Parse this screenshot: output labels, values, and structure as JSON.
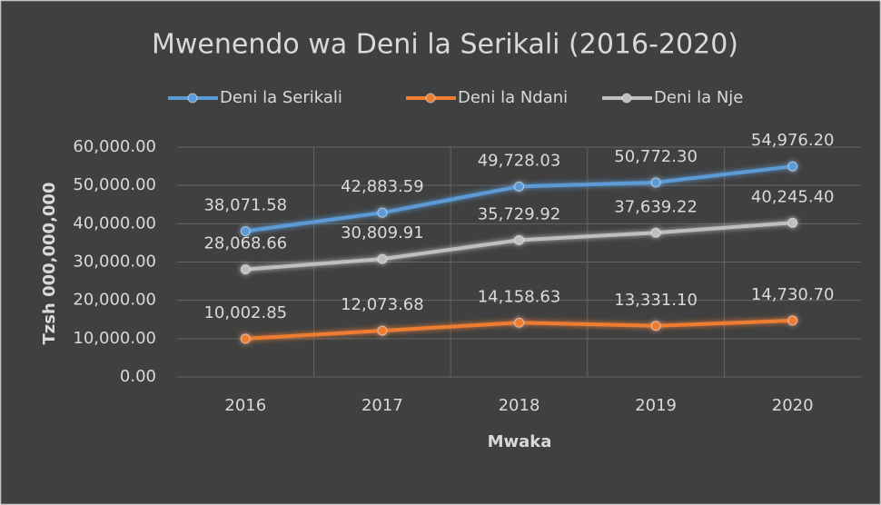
{
  "chart_data": {
    "type": "line",
    "title": "Mwenendo wa Deni la Serikali (2016-2020)",
    "x_label": "Mwaka",
    "y_label": "Tzsh 000,000,000",
    "categories": [
      "2016",
      "2017",
      "2018",
      "2019",
      "2020"
    ],
    "series": [
      {
        "name": "Deni la Serikali",
        "color": "#5b9bd5",
        "values": [
          38071.58,
          42883.59,
          49728.03,
          50772.3,
          54976.2
        ],
        "value_labels": [
          "38,071.58",
          "42,883.59",
          "49,728.03",
          "50,772.30",
          "54,976.20"
        ]
      },
      {
        "name": "Deni la Ndani",
        "color": "#ed7d31",
        "values": [
          10002.85,
          12073.68,
          14158.63,
          13331.1,
          14730.7
        ],
        "value_labels": [
          "10,002.85",
          "12,073.68",
          "14,158.63",
          "13,331.10",
          "14,730.70"
        ]
      },
      {
        "name": "Deni la Nje",
        "color": "#bfbfbf",
        "values": [
          28068.66,
          30809.91,
          35729.92,
          37639.22,
          40245.4
        ],
        "value_labels": [
          "28,068.66",
          "30,809.91",
          "35,729.92",
          "37,639.22",
          "40,245.40"
        ]
      }
    ],
    "ylim": [
      0,
      60000
    ],
    "yticks": [
      {
        "value": 0,
        "label": "0.00"
      },
      {
        "value": 10000,
        "label": "10,000.00"
      },
      {
        "value": 20000,
        "label": "20,000.00"
      },
      {
        "value": 30000,
        "label": "30,000.00"
      },
      {
        "value": 40000,
        "label": "40,000.00"
      },
      {
        "value": 50000,
        "label": "50,000.00"
      },
      {
        "value": 60000,
        "label": "60,000.00"
      }
    ],
    "grid": true,
    "legend": "top"
  }
}
